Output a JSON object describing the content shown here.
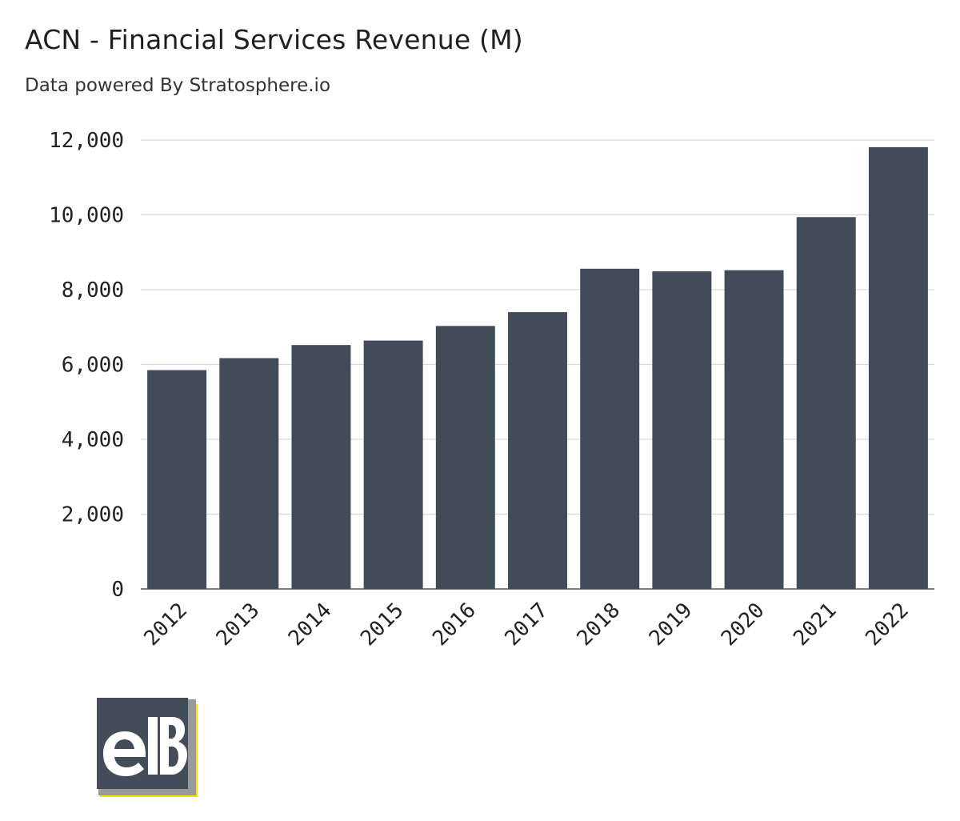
{
  "title": "ACN - Financial Services Revenue (M)",
  "subtitle": "Data powered By Stratosphere.io",
  "logo": {
    "text": "eB",
    "colors": {
      "dark": "#434c59",
      "accent": "#f2e600",
      "gray": "#9a9a9a"
    }
  },
  "colors": {
    "bar": "#424b58",
    "grid": "#d9d9d9",
    "axis": "#555555"
  },
  "chart_data": {
    "type": "bar",
    "categories": [
      "2012",
      "2013",
      "2014",
      "2015",
      "2016",
      "2017",
      "2018",
      "2019",
      "2020",
      "2021",
      "2022"
    ],
    "values": [
      5850,
      6170,
      6520,
      6640,
      7030,
      7400,
      8560,
      8490,
      8520,
      9940,
      11810
    ],
    "title": "ACN - Financial Services Revenue (M)",
    "subtitle": "Data powered By Stratosphere.io",
    "xlabel": "",
    "ylabel": "",
    "ylim": [
      0,
      12000
    ],
    "yticks": [
      0,
      2000,
      4000,
      6000,
      8000,
      10000,
      12000
    ],
    "ytick_labels": [
      "0",
      "2,000",
      "4,000",
      "6,000",
      "8,000",
      "10,000",
      "12,000"
    ],
    "grid": true,
    "legend": false
  }
}
